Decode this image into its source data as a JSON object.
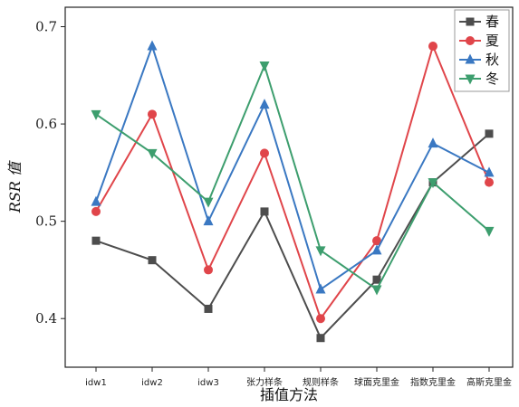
{
  "chart_data": {
    "type": "line",
    "categories": [
      "idw1",
      "idw2",
      "idw3",
      "张力样条",
      "规则样条",
      "球面克里金",
      "指数克里金",
      "高斯克里金"
    ],
    "series": [
      {
        "name": "春",
        "color": "#4d4d4d",
        "marker": "square",
        "values": [
          0.48,
          0.46,
          0.41,
          0.51,
          0.38,
          0.44,
          0.54,
          0.59
        ]
      },
      {
        "name": "夏",
        "color": "#e0454a",
        "marker": "circle",
        "values": [
          0.51,
          0.61,
          0.45,
          0.57,
          0.4,
          0.48,
          0.68,
          0.54
        ]
      },
      {
        "name": "秋",
        "color": "#3a78c2",
        "marker": "triangle-up",
        "values": [
          0.52,
          0.68,
          0.5,
          0.62,
          0.43,
          0.47,
          0.58,
          0.55
        ]
      },
      {
        "name": "冬",
        "color": "#3d9e6e",
        "marker": "triangle-down",
        "values": [
          0.61,
          0.57,
          0.52,
          0.66,
          0.47,
          0.43,
          0.54,
          0.49
        ]
      }
    ],
    "xlabel": "插值方法",
    "ylabel": "RSR 值",
    "ylim": [
      0.35,
      0.72
    ],
    "yticks": [
      0.4,
      0.5,
      0.6,
      0.7
    ],
    "grid": false,
    "legend": "top-right"
  }
}
